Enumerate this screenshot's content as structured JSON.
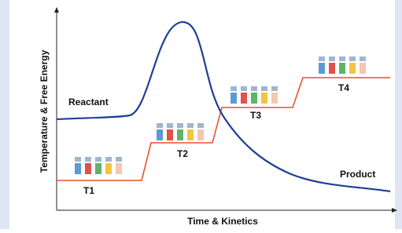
{
  "axes": {
    "y_label": "Temperature & Free Energy",
    "x_label": "Time & Kinetics"
  },
  "curve_labels": {
    "start": "Reactant",
    "end": "Product"
  },
  "steps": [
    "T1",
    "T2",
    "T3",
    "T4"
  ]
}
